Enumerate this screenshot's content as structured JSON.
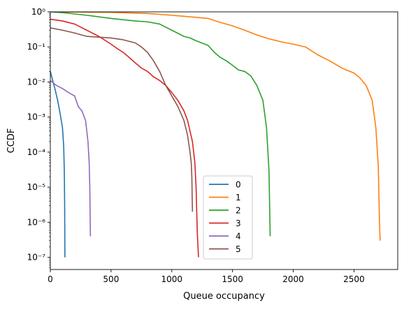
{
  "chart_data": {
    "type": "line",
    "title": "",
    "xlabel": "Queue occupancy",
    "ylabel": "CCDF",
    "xlim": [
      0,
      2860
    ],
    "ylim": [
      4.5e-08,
      1
    ],
    "yscale": "log",
    "grid": false,
    "legend_position": "lower-center",
    "x_ticks": [
      0,
      500,
      1000,
      1500,
      2000,
      2500
    ],
    "x_tick_labels": [
      "0",
      "500",
      "1000",
      "1500",
      "2000",
      "2500"
    ],
    "y_ticks": [
      1e-07,
      1e-06,
      1e-05,
      0.0001,
      0.001,
      0.01,
      0.1,
      1
    ],
    "y_tick_labels": [
      "10⁻⁷",
      "10⁻⁶",
      "10⁻⁵",
      "10⁻⁴",
      "10⁻³",
      "10⁻²",
      "10⁻¹",
      "10⁰"
    ],
    "series": [
      {
        "name": "0",
        "color": "#1f77b4",
        "points": [
          [
            0,
            0.02
          ],
          [
            40,
            0.006
          ],
          [
            60,
            0.003
          ],
          [
            80,
            0.0013
          ],
          [
            100,
            0.0005
          ],
          [
            110,
            0.00015
          ],
          [
            115,
            3e-05
          ],
          [
            118,
            3e-06
          ],
          [
            120,
            1e-07
          ]
        ]
      },
      {
        "name": "1",
        "color": "#ff7f0e",
        "points": [
          [
            0,
            1
          ],
          [
            500,
            0.97
          ],
          [
            800,
            0.9
          ],
          [
            1000,
            0.8
          ],
          [
            1200,
            0.7
          ],
          [
            1300,
            0.65
          ],
          [
            1400,
            0.5
          ],
          [
            1500,
            0.4
          ],
          [
            1600,
            0.3
          ],
          [
            1700,
            0.22
          ],
          [
            1800,
            0.17
          ],
          [
            1900,
            0.14
          ],
          [
            2000,
            0.12
          ],
          [
            2100,
            0.1
          ],
          [
            2200,
            0.06
          ],
          [
            2300,
            0.04
          ],
          [
            2400,
            0.025
          ],
          [
            2500,
            0.018
          ],
          [
            2550,
            0.013
          ],
          [
            2600,
            0.008
          ],
          [
            2650,
            0.003
          ],
          [
            2680,
            0.0005
          ],
          [
            2700,
            4e-05
          ],
          [
            2710,
            1e-06
          ],
          [
            2715,
            3e-07
          ]
        ]
      },
      {
        "name": "2",
        "color": "#2ca02c",
        "points": [
          [
            0,
            1
          ],
          [
            100,
            0.95
          ],
          [
            300,
            0.8
          ],
          [
            500,
            0.65
          ],
          [
            700,
            0.55
          ],
          [
            800,
            0.52
          ],
          [
            900,
            0.45
          ],
          [
            1000,
            0.3
          ],
          [
            1100,
            0.2
          ],
          [
            1150,
            0.18
          ],
          [
            1200,
            0.15
          ],
          [
            1300,
            0.11
          ],
          [
            1350,
            0.07
          ],
          [
            1400,
            0.05
          ],
          [
            1450,
            0.04
          ],
          [
            1500,
            0.03
          ],
          [
            1550,
            0.022
          ],
          [
            1600,
            0.02
          ],
          [
            1650,
            0.015
          ],
          [
            1700,
            0.008
          ],
          [
            1750,
            0.003
          ],
          [
            1780,
            0.0005
          ],
          [
            1800,
            3e-05
          ],
          [
            1810,
            4e-07
          ]
        ]
      },
      {
        "name": "3",
        "color": "#d62728",
        "points": [
          [
            0,
            0.62
          ],
          [
            100,
            0.55
          ],
          [
            200,
            0.45
          ],
          [
            300,
            0.3
          ],
          [
            400,
            0.2
          ],
          [
            500,
            0.12
          ],
          [
            550,
            0.09
          ],
          [
            600,
            0.07
          ],
          [
            650,
            0.05
          ],
          [
            700,
            0.035
          ],
          [
            750,
            0.025
          ],
          [
            800,
            0.02
          ],
          [
            850,
            0.014
          ],
          [
            900,
            0.011
          ],
          [
            950,
            0.008
          ],
          [
            1000,
            0.005
          ],
          [
            1050,
            0.003
          ],
          [
            1100,
            0.0015
          ],
          [
            1130,
            0.0008
          ],
          [
            1150,
            0.0004
          ],
          [
            1170,
            0.0002
          ],
          [
            1190,
            5e-05
          ],
          [
            1200,
            1e-05
          ],
          [
            1210,
            5e-07
          ],
          [
            1220,
            1e-07
          ]
        ]
      },
      {
        "name": "4",
        "color": "#9467bd",
        "points": [
          [
            0,
            0.011
          ],
          [
            50,
            0.008
          ],
          [
            100,
            0.0065
          ],
          [
            150,
            0.005
          ],
          [
            200,
            0.004
          ],
          [
            230,
            0.002
          ],
          [
            260,
            0.0015
          ],
          [
            290,
            0.0008
          ],
          [
            310,
            0.0002
          ],
          [
            320,
            5e-05
          ],
          [
            325,
            1e-05
          ],
          [
            330,
            4e-07
          ]
        ]
      },
      {
        "name": "5",
        "color": "#8c564b",
        "points": [
          [
            0,
            0.35
          ],
          [
            100,
            0.3
          ],
          [
            200,
            0.25
          ],
          [
            300,
            0.2
          ],
          [
            400,
            0.19
          ],
          [
            500,
            0.18
          ],
          [
            600,
            0.16
          ],
          [
            700,
            0.13
          ],
          [
            750,
            0.1
          ],
          [
            800,
            0.07
          ],
          [
            850,
            0.04
          ],
          [
            900,
            0.02
          ],
          [
            950,
            0.008
          ],
          [
            1000,
            0.004
          ],
          [
            1050,
            0.002
          ],
          [
            1100,
            0.0008
          ],
          [
            1130,
            0.0003
          ],
          [
            1150,
            0.0001
          ],
          [
            1160,
            5e-05
          ],
          [
            1165,
            2e-05
          ],
          [
            1170,
            2e-06
          ]
        ]
      }
    ]
  }
}
